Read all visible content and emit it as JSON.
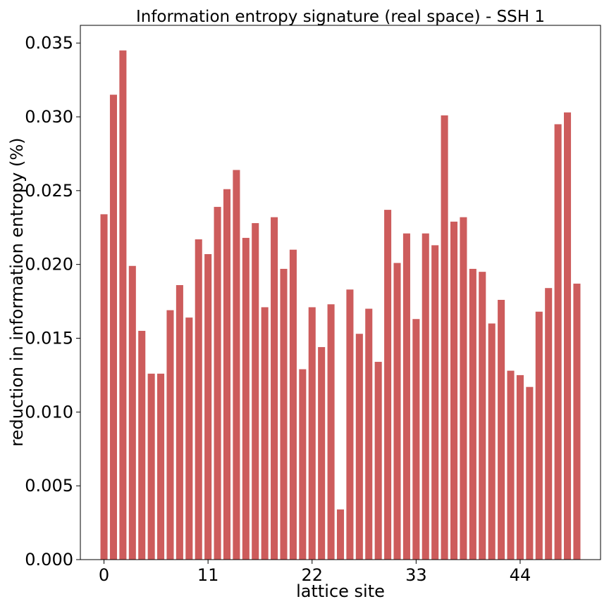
{
  "chart_data": {
    "type": "bar",
    "title": "Information entropy signature (real space) - SSH 1",
    "xlabel": "lattice site",
    "ylabel": "reduction in information entropy (%)",
    "x": [
      0,
      1,
      2,
      3,
      4,
      5,
      6,
      7,
      8,
      9,
      10,
      11,
      12,
      13,
      14,
      15,
      16,
      17,
      18,
      19,
      20,
      21,
      22,
      23,
      24,
      25,
      26,
      27,
      28,
      29,
      30,
      31,
      32,
      33,
      34,
      35,
      36,
      37,
      38,
      39,
      40,
      41,
      42,
      43,
      44,
      45,
      46,
      47,
      48,
      49,
      50
    ],
    "values": [
      0.0234,
      0.0315,
      0.0345,
      0.0199,
      0.0155,
      0.0126,
      0.0126,
      0.0169,
      0.0186,
      0.0164,
      0.0217,
      0.0207,
      0.0239,
      0.0251,
      0.0264,
      0.0218,
      0.0228,
      0.0171,
      0.0232,
      0.0197,
      0.021,
      0.0129,
      0.0171,
      0.0144,
      0.0173,
      0.0034,
      0.0183,
      0.0153,
      0.017,
      0.0134,
      0.0237,
      0.0201,
      0.0221,
      0.0163,
      0.0221,
      0.0213,
      0.0301,
      0.0229,
      0.0232,
      0.0197,
      0.0195,
      0.016,
      0.0176,
      0.0128,
      0.0125,
      0.0117,
      0.0168,
      0.0184,
      0.0295,
      0.0303,
      0.0187
    ],
    "xticks": [
      0,
      11,
      22,
      33,
      44
    ],
    "xtick_labels": [
      "0",
      "11",
      "22",
      "33",
      "44"
    ],
    "yticks": [
      0.0,
      0.005,
      0.01,
      0.015,
      0.02,
      0.025,
      0.03,
      0.035
    ],
    "ytick_labels": [
      "0.000",
      "0.005",
      "0.010",
      "0.015",
      "0.020",
      "0.025",
      "0.030",
      "0.035"
    ],
    "xlim": [
      -2.5,
      52.5
    ],
    "ylim": [
      0,
      0.0362
    ],
    "grid": false,
    "legend": "none",
    "bar_color": "#cd5c5c"
  }
}
